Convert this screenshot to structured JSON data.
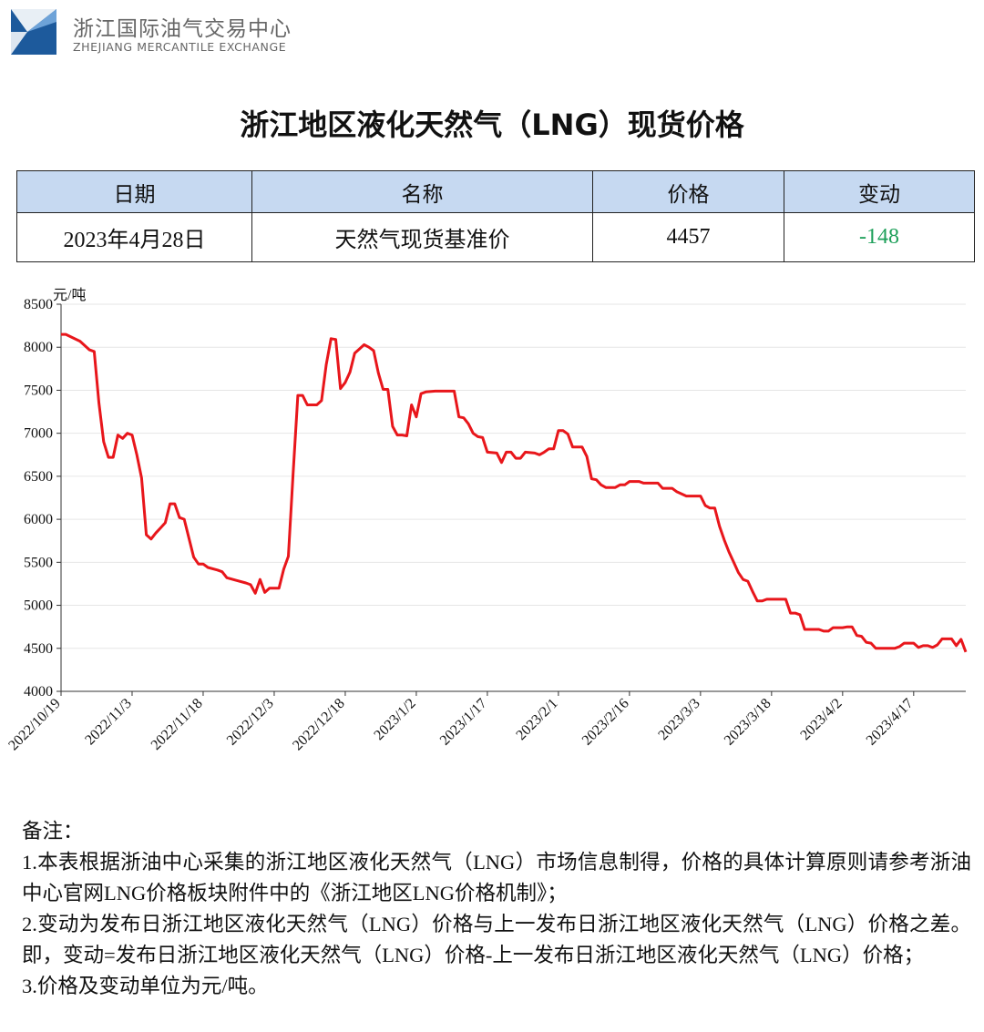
{
  "header": {
    "org_cn": "浙江国际油气交易中心",
    "org_en": "ZHEJIANG MERCANTILE EXCHANGE"
  },
  "title": "浙江地区液化天然气（LNG）现货价格",
  "table": {
    "header": [
      "日期",
      "名称",
      "价格",
      "变动"
    ],
    "rows": [
      [
        "2023年4月28日",
        "天然气现货基准价",
        "4457",
        "-148"
      ]
    ]
  },
  "chart_data": {
    "type": "line",
    "y_label": "元/吨",
    "x": [
      "2022/10/19",
      "2022/10/20",
      "2022/10/23",
      "2022/10/25",
      "2022/10/26",
      "2022/10/27",
      "2022/10/28",
      "2022/10/29",
      "2022/10/30",
      "2022/10/31",
      "2022/11/1",
      "2022/11/2",
      "2022/11/3",
      "2022/11/4",
      "2022/11/5",
      "2022/11/6",
      "2022/11/7",
      "2022/11/8",
      "2022/11/9",
      "2022/11/10",
      "2022/11/11",
      "2022/11/12",
      "2022/11/13",
      "2022/11/14",
      "2022/11/16",
      "2022/11/17",
      "2022/11/18",
      "2022/11/19",
      "2022/11/21",
      "2022/11/22",
      "2022/11/23",
      "2022/11/25",
      "2022/11/27",
      "2022/11/28",
      "2022/11/29",
      "2022/11/30",
      "2022/12/1",
      "2022/12/2",
      "2022/12/4",
      "2022/12/5",
      "2022/12/6",
      "2022/12/7",
      "2022/12/8",
      "2022/12/9",
      "2022/12/10",
      "2022/12/12",
      "2022/12/13",
      "2022/12/14",
      "2022/12/15",
      "2022/12/16",
      "2022/12/17",
      "2022/12/18",
      "2022/12/19",
      "2022/12/20",
      "2022/12/21",
      "2022/12/22",
      "2022/12/23",
      "2022/12/24",
      "2022/12/25",
      "2022/12/26",
      "2022/12/27",
      "2022/12/28",
      "2022/12/29",
      "2022/12/30",
      "2022/12/31",
      "2023/1/1",
      "2023/1/2",
      "2023/1/3",
      "2023/1/4",
      "2023/1/6",
      "2023/1/10",
      "2023/1/11",
      "2023/1/12",
      "2023/1/13",
      "2023/1/14",
      "2023/1/15",
      "2023/1/16",
      "2023/1/17",
      "2023/1/19",
      "2023/1/20",
      "2023/1/21",
      "2023/1/22",
      "2023/1/23",
      "2023/1/24",
      "2023/1/25",
      "2023/1/27",
      "2023/1/28",
      "2023/1/29",
      "2023/1/30",
      "2023/1/31",
      "2023/2/1",
      "2023/2/2",
      "2023/2/3",
      "2023/2/4",
      "2023/2/6",
      "2023/2/7",
      "2023/2/8",
      "2023/2/9",
      "2023/2/10",
      "2023/2/11",
      "2023/2/13",
      "2023/2/14",
      "2023/2/15",
      "2023/2/16",
      "2023/2/18",
      "2023/2/19",
      "2023/2/22",
      "2023/2/23",
      "2023/2/25",
      "2023/2/26",
      "2023/2/28",
      "2023/3/3",
      "2023/3/4",
      "2023/3/5",
      "2023/3/6",
      "2023/3/7",
      "2023/3/8",
      "2023/3/9",
      "2023/3/10",
      "2023/3/11",
      "2023/3/12",
      "2023/3/13",
      "2023/3/14",
      "2023/3/15",
      "2023/3/16",
      "2023/3/17",
      "2023/3/21",
      "2023/3/22",
      "2023/3/23",
      "2023/3/24",
      "2023/3/25",
      "2023/3/28",
      "2023/3/29",
      "2023/3/30",
      "2023/3/31",
      "2023/4/2",
      "2023/4/3",
      "2023/4/4",
      "2023/4/5",
      "2023/4/6",
      "2023/4/7",
      "2023/4/8",
      "2023/4/9",
      "2023/4/13",
      "2023/4/14",
      "2023/4/15",
      "2023/4/17",
      "2023/4/18",
      "2023/4/19",
      "2023/4/20",
      "2023/4/21",
      "2023/4/22",
      "2023/4/23",
      "2023/4/25",
      "2023/4/26",
      "2023/4/27",
      "2023/4/28"
    ],
    "series": [
      {
        "name": "天然气现货基准价",
        "color": "#e8161b",
        "values": [
          8150,
          8150,
          8070,
          7970,
          7950,
          7350,
          6900,
          6720,
          6720,
          6980,
          6940,
          7000,
          6980,
          6750,
          6480,
          5820,
          5770,
          5840,
          5900,
          5960,
          6180,
          6180,
          6020,
          6000,
          5560,
          5480,
          5480,
          5440,
          5410,
          5390,
          5320,
          5290,
          5260,
          5240,
          5140,
          5300,
          5150,
          5200,
          5200,
          5420,
          5570,
          6530,
          7440,
          7440,
          7330,
          7330,
          7380,
          7800,
          8100,
          8090,
          7520,
          7590,
          7710,
          7930,
          7980,
          8030,
          8000,
          7960,
          7700,
          7510,
          7510,
          7080,
          6980,
          6980,
          6970,
          7330,
          7190,
          7460,
          7480,
          7490,
          7490,
          7190,
          7180,
          7110,
          7000,
          6960,
          6950,
          6780,
          6770,
          6660,
          6780,
          6780,
          6710,
          6710,
          6780,
          6770,
          6750,
          6780,
          6820,
          6820,
          7030,
          7030,
          6990,
          6840,
          6840,
          6730,
          6470,
          6460,
          6400,
          6370,
          6370,
          6400,
          6400,
          6440,
          6440,
          6420,
          6420,
          6360,
          6360,
          6320,
          6270,
          6270,
          6160,
          6130,
          6130,
          5920,
          5760,
          5620,
          5500,
          5380,
          5300,
          5280,
          5160,
          5050,
          5050,
          5070,
          5070,
          4910,
          4910,
          4890,
          4720,
          4720,
          4700,
          4700,
          4740,
          4740,
          4750,
          4750,
          4650,
          4640,
          4570,
          4560,
          4500,
          4500,
          4520,
          4560,
          4560,
          4510,
          4530,
          4530,
          4510,
          4540,
          4610,
          4610,
          4530,
          4605,
          4457
        ]
      }
    ],
    "xlim": [
      "2022/10/19",
      "2023/4/28"
    ],
    "xticks": [
      "2022/10/19",
      "2022/11/3",
      "2022/11/18",
      "2022/12/3",
      "2022/12/18",
      "2023/1/2",
      "2023/1/17",
      "2023/2/1",
      "2023/2/16",
      "2023/3/3",
      "2023/3/18",
      "2023/4/2",
      "2023/4/17"
    ],
    "ylim": [
      4000,
      8500
    ],
    "yticks": [
      4000,
      4500,
      5000,
      5500,
      6000,
      6500,
      7000,
      7500,
      8000,
      8500
    ],
    "grid": true
  },
  "notes": {
    "heading": "备注：",
    "items": [
      "1.本表根据浙油中心采集的浙江地区液化天然气（LNG）市场信息制得，价格的具体计算原则请参考浙油中心官网LNG价格板块附件中的《浙江地区LNG价格机制》；",
      "2.变动为发布日浙江地区液化天然气（LNG）价格与上一发布日浙江地区液化天然气（LNG）价格之差。即，变动=发布日浙江地区液化天然气（LNG）价格-上一发布日浙江地区液化天然气（LNG）价格；",
      "3.价格及变动单位为元/吨。"
    ]
  }
}
